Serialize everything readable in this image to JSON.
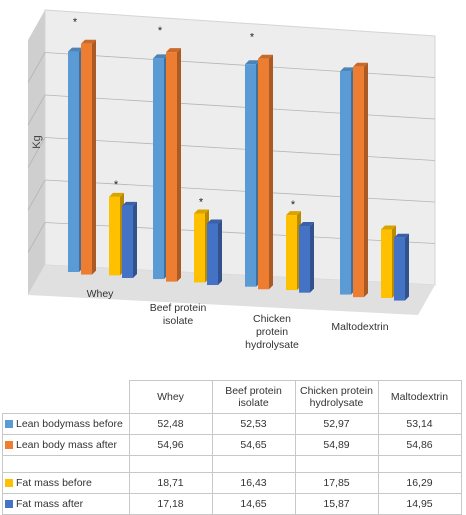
{
  "chart_data": {
    "type": "bar",
    "ylabel": "Kg",
    "ylim": [
      0,
      60
    ],
    "categories": [
      "Whey",
      "Beef protein isolate",
      "Chicken protein hydrolysate",
      "Maltodextrin"
    ],
    "series": [
      {
        "name": "Lean bodymass before",
        "values": [
          52.48,
          52.53,
          52.97,
          53.14
        ],
        "color": "#5B9BD5",
        "group": "lean"
      },
      {
        "name": "Lean body mass after",
        "values": [
          54.96,
          54.65,
          54.89,
          54.86
        ],
        "color": "#ED7D31",
        "group": "lean"
      },
      {
        "name": "Fat mass before",
        "values": [
          18.71,
          16.43,
          17.85,
          16.29
        ],
        "color": "#FFC000",
        "group": "fat"
      },
      {
        "name": "Fat mass after",
        "values": [
          17.18,
          14.65,
          15.87,
          14.95
        ],
        "color": "#4472C4",
        "group": "fat"
      }
    ],
    "significance": [
      {
        "category": 0,
        "group": "lean",
        "text": "*"
      },
      {
        "category": 1,
        "group": "lean",
        "text": "*"
      },
      {
        "category": 2,
        "group": "lean",
        "text": "*"
      },
      {
        "category": 0,
        "group": "fat",
        "text": "*"
      },
      {
        "category": 1,
        "group": "fat",
        "text": "*"
      },
      {
        "category": 2,
        "group": "fat",
        "text": "*"
      }
    ],
    "grid": true,
    "legend": "table"
  },
  "table": {
    "headers": [
      "Whey",
      "Beef protein isolate",
      "Chicken protein hydrolysate",
      "Maltodextrin"
    ],
    "rows": [
      {
        "label": "Lean bodymass before",
        "values": [
          "52,48",
          "52,53",
          "52,97",
          "53,14"
        ]
      },
      {
        "label": "Lean body mass after",
        "values": [
          "54,96",
          "54,65",
          "54,89",
          "54,86"
        ]
      },
      {
        "label": "Fat mass before",
        "values": [
          "18,71",
          "16,43",
          "17,85",
          "16,29"
        ]
      },
      {
        "label": "Fat mass after",
        "values": [
          "17,18",
          "14,65",
          "15,87",
          "14,95"
        ]
      }
    ]
  }
}
